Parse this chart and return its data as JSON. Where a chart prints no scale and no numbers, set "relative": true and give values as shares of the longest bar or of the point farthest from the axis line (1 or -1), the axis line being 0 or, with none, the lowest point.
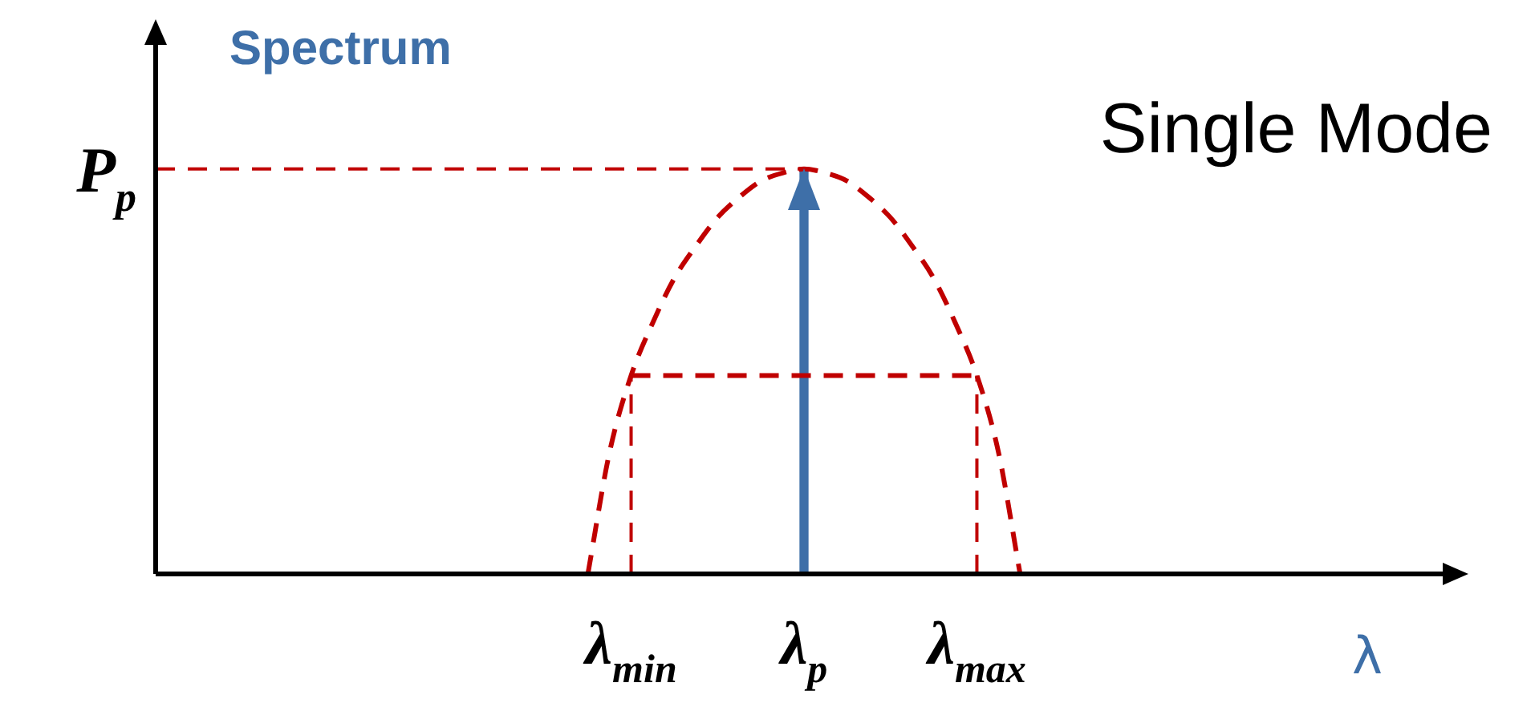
{
  "chart_data": {
    "type": "line",
    "title": "Spectrum",
    "xlabel": "λ",
    "relative": true,
    "marker": "none",
    "annotations": [
      "Single Mode"
    ],
    "categories": [
      null,
      null,
      null,
      null,
      null,
      null,
      null,
      null,
      null,
      null,
      null,
      null,
      null,
      null,
      null,
      null,
      null,
      null,
      null,
      null,
      null,
      null,
      "λ$_{min}$",
      null,
      null,
      null,
      null,
      null,
      null,
      null,
      "λ$_{p}$",
      null,
      null,
      null,
      null,
      null,
      null,
      null,
      "λ$_{max}$",
      null,
      null,
      null,
      null,
      null,
      null,
      null,
      null,
      null,
      null,
      null,
      null,
      null,
      null,
      null,
      null,
      null,
      null,
      null,
      null,
      null,
      null
    ],
    "series": [
      {
        "color": "#c00000",
        "line_style": "dashed",
        "values": [
          null,
          null,
          null,
          null,
          null,
          null,
          null,
          null,
          null,
          null,
          null,
          null,
          null,
          null,
          null,
          null,
          null,
          null,
          null,
          null,
          0,
          0.3,
          0.49,
          0.62,
          0.73,
          0.81,
          0.88,
          0.93,
          0.97,
          0.99,
          1,
          0.99,
          0.97,
          0.93,
          0.88,
          0.81,
          0.73,
          0.62,
          0.49,
          0.3,
          0,
          null,
          null,
          null,
          null,
          null,
          null,
          null,
          null,
          null,
          null,
          null,
          null,
          null,
          null,
          null,
          null,
          null,
          null,
          null,
          null
        ]
      },
      {
        "type": "bar",
        "color": "#3e6fa8",
        "values": [
          null,
          null,
          null,
          null,
          null,
          null,
          null,
          null,
          null,
          null,
          null,
          null,
          null,
          null,
          null,
          null,
          null,
          null,
          null,
          null,
          null,
          null,
          null,
          null,
          null,
          null,
          null,
          null,
          null,
          null,
          1,
          null,
          null,
          null,
          null,
          null,
          null,
          null,
          null,
          null,
          null,
          null,
          null,
          null,
          null,
          null,
          null,
          null,
          null,
          null,
          null,
          null,
          null,
          null,
          null,
          null,
          null,
          null,
          null,
          null,
          null
        ]
      },
      {
        "type": "line",
        "color": "#c00000",
        "line_style": "dashed",
        "values": [
          null,
          null,
          null,
          null,
          null,
          null,
          null,
          null,
          null,
          null,
          null,
          null,
          null,
          null,
          null,
          null,
          null,
          null,
          null,
          null,
          null,
          null,
          0.49,
          0.49,
          0.49,
          0.49,
          0.49,
          0.49,
          0.49,
          0.49,
          0.49,
          0.49,
          0.49,
          0.49,
          0.49,
          0.49,
          0.49,
          0.49,
          0.49,
          null,
          null,
          null,
          null,
          null,
          null,
          null,
          null,
          null,
          null,
          null,
          null,
          null,
          null,
          null,
          null,
          null,
          null,
          null,
          null,
          null,
          null
        ]
      }
    ],
    "ref_lines": [
      {
        "axis": "y",
        "value": 1,
        "label": "P$_{p}$",
        "color": "#c00000",
        "line_style": "dashed"
      },
      {
        "axis": "x",
        "value": "λ$_{min}$",
        "color": "#c00000",
        "line_style": "dashed"
      },
      {
        "axis": "x",
        "value": "λ$_{max}$",
        "color": "#c00000",
        "line_style": "dashed"
      }
    ]
  }
}
